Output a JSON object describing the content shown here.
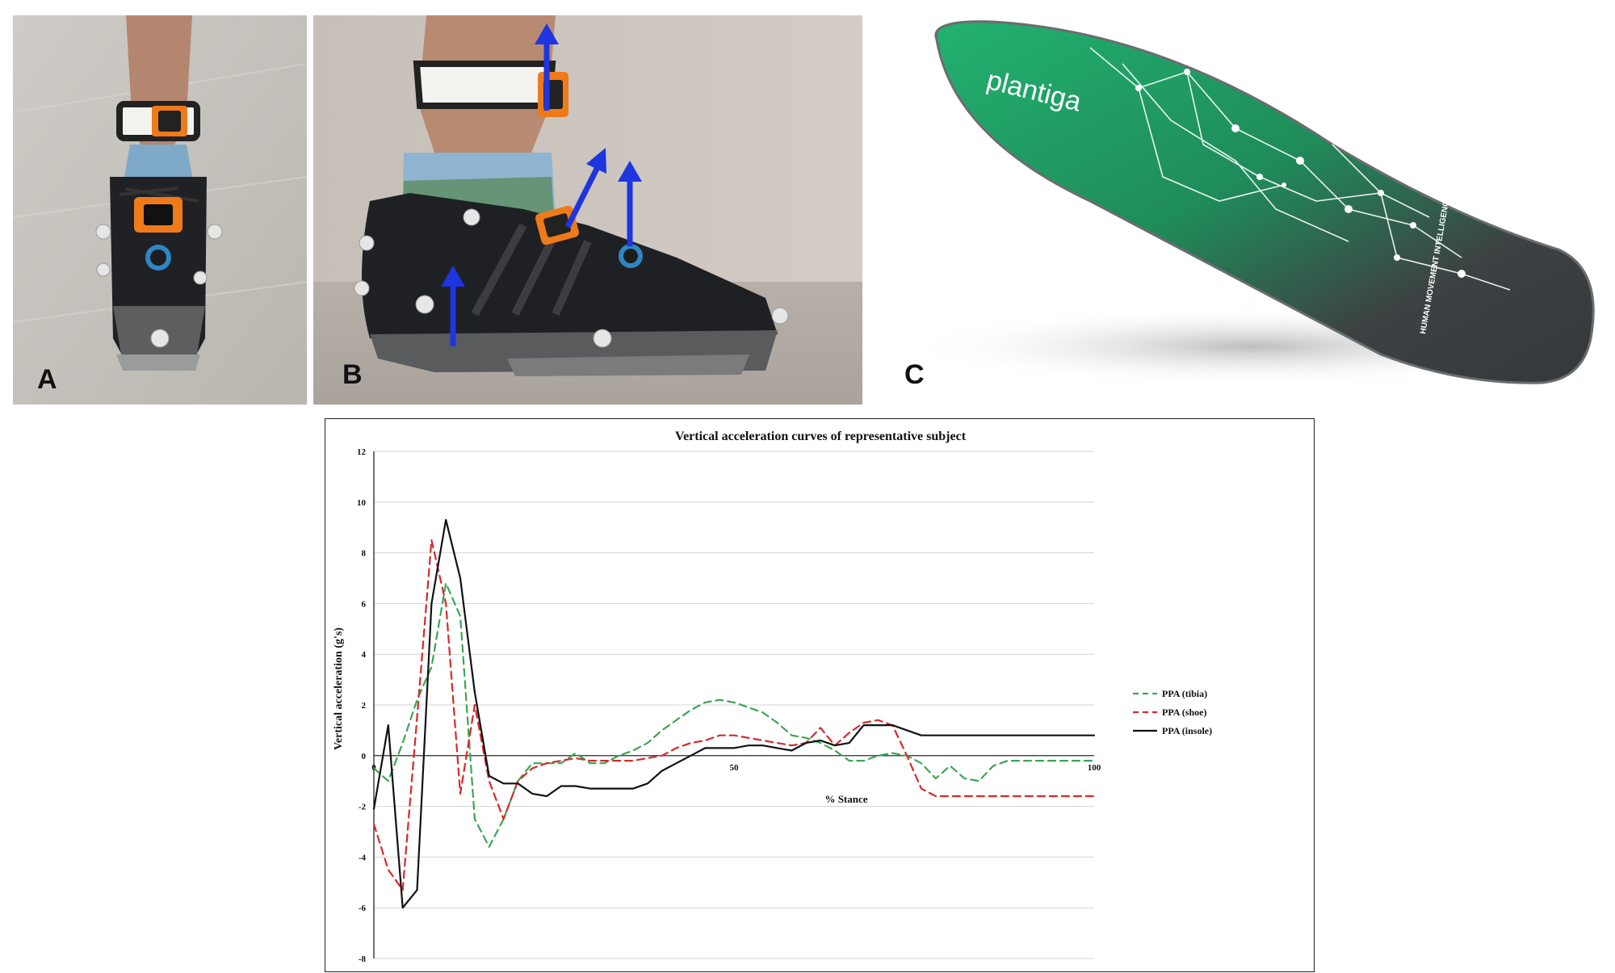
{
  "panels": {
    "a": {
      "letter": "A"
    },
    "b": {
      "letter": "B"
    },
    "c": {
      "letter": "C",
      "insole_brand": "plantiga",
      "insole_tagline": "HUMAN\nMOVEMENT\nINTELLIGENCE"
    }
  },
  "colors": {
    "tibia": "#3aa655",
    "shoe": "#d42a2a",
    "insole": "#111111",
    "arrow": "#1f35e0",
    "insole_green": "#1fa968",
    "insole_dark": "#3a3d3f"
  },
  "chart_data": {
    "type": "line",
    "title": "Vertical acceleration curves of representative subject",
    "xlabel": "% Stance",
    "ylabel": "Vertical acceleration (g's)",
    "xlim": [
      0,
      100
    ],
    "ylim": [
      -8,
      12
    ],
    "yticks": [
      -8,
      -6,
      -4,
      -2,
      0,
      2,
      4,
      6,
      8,
      10,
      12
    ],
    "xticks": [
      0,
      50,
      100
    ],
    "grid": true,
    "legend": "right",
    "series": [
      {
        "name": "PPA (tibia)",
        "style": "dashed",
        "x": [
          0,
          2,
          4,
          6,
          8,
          10,
          12,
          14,
          16,
          18,
          20,
          22,
          24,
          26,
          28,
          30,
          32,
          34,
          36,
          38,
          40,
          42,
          44,
          46,
          48,
          50,
          52,
          54,
          56,
          58,
          60,
          62,
          64,
          66,
          68,
          70,
          72,
          74,
          76,
          78,
          80,
          82,
          84,
          86,
          88,
          90,
          92,
          94,
          96,
          98,
          100
        ],
        "y": [
          -0.5,
          -1.0,
          0.5,
          2.2,
          3.5,
          6.8,
          5.5,
          -2.5,
          -3.6,
          -2.5,
          -1.0,
          -0.3,
          -0.3,
          -0.3,
          0.1,
          -0.3,
          -0.3,
          0.0,
          0.2,
          0.5,
          1.0,
          1.4,
          1.8,
          2.1,
          2.2,
          2.1,
          1.9,
          1.7,
          1.3,
          0.8,
          0.7,
          0.5,
          0.2,
          -0.2,
          -0.2,
          0.0,
          0.1,
          0.0,
          -0.3,
          -0.9,
          -0.4,
          -0.9,
          -1.0,
          -0.4,
          -0.2,
          -0.2,
          -0.2,
          -0.2,
          -0.2,
          -0.2,
          -0.2
        ]
      },
      {
        "name": "PPA (shoe)",
        "style": "dashed",
        "x": [
          0,
          2,
          4,
          6,
          8,
          10,
          12,
          14,
          16,
          18,
          20,
          22,
          24,
          26,
          28,
          30,
          32,
          34,
          36,
          38,
          40,
          42,
          44,
          46,
          48,
          50,
          52,
          54,
          56,
          58,
          60,
          62,
          64,
          66,
          68,
          70,
          72,
          74,
          76,
          78,
          80,
          82,
          84,
          86,
          88,
          90,
          92,
          94,
          96,
          98,
          100
        ],
        "y": [
          -2.7,
          -4.5,
          -5.3,
          1.5,
          8.5,
          6.0,
          -1.5,
          2.0,
          -1.0,
          -2.5,
          -1.0,
          -0.5,
          -0.3,
          -0.2,
          -0.1,
          -0.2,
          -0.2,
          -0.2,
          -0.2,
          -0.1,
          0.0,
          0.3,
          0.5,
          0.6,
          0.8,
          0.8,
          0.7,
          0.6,
          0.5,
          0.4,
          0.5,
          1.1,
          0.4,
          0.9,
          1.3,
          1.4,
          1.2,
          0.0,
          -1.3,
          -1.6,
          -1.6,
          -1.6,
          -1.6,
          -1.6,
          -1.6,
          -1.6,
          -1.6,
          -1.6,
          -1.6,
          -1.6,
          -1.6
        ]
      },
      {
        "name": "PPA (insole)",
        "style": "solid",
        "x": [
          0,
          2,
          4,
          6,
          8,
          10,
          12,
          14,
          16,
          18,
          20,
          22,
          24,
          26,
          28,
          30,
          32,
          34,
          36,
          38,
          40,
          42,
          44,
          46,
          48,
          50,
          52,
          54,
          56,
          58,
          60,
          62,
          64,
          66,
          68,
          70,
          72,
          74,
          76,
          78,
          80,
          82,
          84,
          86,
          88,
          90,
          92,
          94,
          96,
          98,
          100
        ],
        "y": [
          -2.1,
          1.2,
          -6.0,
          -5.3,
          6.0,
          9.3,
          7.0,
          2.5,
          -0.8,
          -1.1,
          -1.1,
          -1.5,
          -1.6,
          -1.2,
          -1.2,
          -1.3,
          -1.3,
          -1.3,
          -1.3,
          -1.1,
          -0.6,
          -0.3,
          0.0,
          0.3,
          0.3,
          0.3,
          0.4,
          0.4,
          0.3,
          0.2,
          0.5,
          0.6,
          0.4,
          0.5,
          1.2,
          1.2,
          1.2,
          1.0,
          0.8,
          0.8,
          0.8,
          0.8,
          0.8,
          0.8,
          0.8,
          0.8,
          0.8,
          0.8,
          0.8,
          0.8,
          0.8
        ]
      }
    ]
  }
}
